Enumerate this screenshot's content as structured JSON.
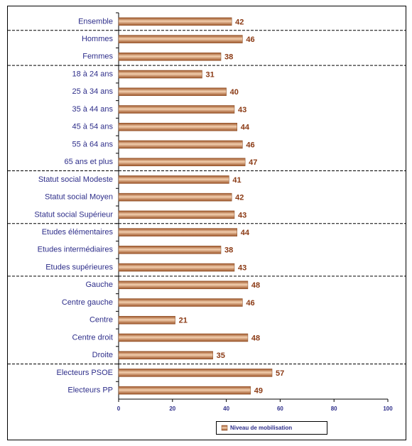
{
  "chart_data": {
    "type": "bar",
    "orientation": "horizontal",
    "categories": [
      "Ensemble",
      "Hommes",
      "Femmes",
      "18 à 24 ans",
      "25 à 34 ans",
      "35 à 44 ans",
      "45 à 54 ans",
      "55 à 64 ans",
      "65 ans et plus",
      "Statut social Modeste",
      "Statut social Moyen",
      "Statut social Supérieur",
      "Etudes élémentaires",
      "Etudes intermédiaires",
      "Etudes supérieures",
      "Gauche",
      "Centre gauche",
      "Centre",
      "Centre droit",
      "Droite",
      "Electeurs PSOE",
      "Electeurs PP"
    ],
    "series": [
      {
        "name": "Niveau de mobilisation",
        "color": "#d9956a",
        "values": [
          42,
          46,
          38,
          31,
          40,
          43,
          44,
          46,
          47,
          41,
          42,
          43,
          44,
          38,
          43,
          48,
          46,
          21,
          48,
          35,
          57,
          49
        ]
      }
    ],
    "xlim": [
      0,
      100
    ],
    "xticks": [
      0,
      20,
      40,
      60,
      80,
      100
    ],
    "legend": "bottom"
  }
}
